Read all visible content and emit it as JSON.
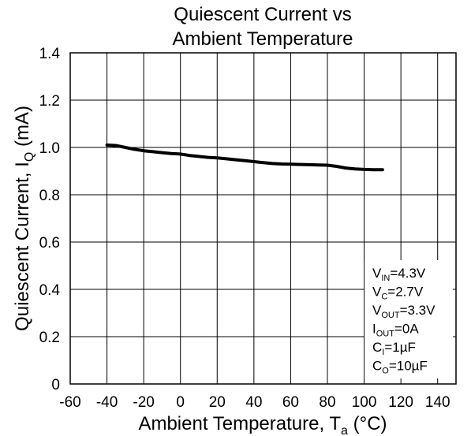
{
  "chart_data": {
    "type": "line",
    "title_lines": [
      "Quiescent Current vs",
      "Ambient Temperature"
    ],
    "xlabel": {
      "main": "Ambient Temperature, T",
      "sub": "a",
      "unit": " (°C)"
    },
    "ylabel": {
      "main": "Quiescent Current, I",
      "sub": "Q",
      "unit": " (mA)"
    },
    "xlim": [
      -60,
      150
    ],
    "ylim": [
      0,
      1.4
    ],
    "x_ticks": [
      -60,
      -40,
      -20,
      0,
      20,
      40,
      60,
      80,
      100,
      120,
      140
    ],
    "x_tick_labels": [
      "-60",
      "-40",
      "-20",
      "0",
      "20",
      "40",
      "60",
      "80",
      "100",
      "120",
      "140"
    ],
    "y_ticks": [
      0,
      0.2,
      0.4,
      0.6,
      0.8,
      1.0,
      1.2,
      1.4
    ],
    "y_tick_labels": [
      "0",
      "0.2",
      "0.4",
      "0.6",
      "0.8",
      "1.0",
      "1.2",
      "1.4"
    ],
    "grid": true,
    "legend": "none",
    "series": [
      {
        "color": "#000000",
        "x": [
          -40,
          -35,
          -30,
          -25,
          -20,
          -15,
          -10,
          -5,
          0,
          5,
          10,
          15,
          20,
          25,
          30,
          35,
          40,
          45,
          50,
          55,
          60,
          65,
          70,
          75,
          80,
          85,
          90,
          95,
          100,
          105,
          110
        ],
        "y": [
          1.01,
          1.008,
          1.0,
          0.992,
          0.986,
          0.982,
          0.978,
          0.974,
          0.972,
          0.966,
          0.962,
          0.958,
          0.956,
          0.952,
          0.948,
          0.944,
          0.94,
          0.936,
          0.932,
          0.93,
          0.929,
          0.928,
          0.927,
          0.926,
          0.925,
          0.92,
          0.913,
          0.909,
          0.907,
          0.906,
          0.906
        ]
      }
    ],
    "annotations": [
      {
        "main": "V",
        "sub": "IN",
        "rest": "=4.3V"
      },
      {
        "main": "V",
        "sub": "C",
        "rest": "=2.7V"
      },
      {
        "main": "V",
        "sub": "OUT",
        "rest": "=3.3V"
      },
      {
        "main": "I",
        "sub": "OUT",
        "rest": "=0A"
      },
      {
        "main": "C",
        "sub": "I",
        "rest": "=1µF"
      },
      {
        "main": "C",
        "sub": "O",
        "rest": "=10µF"
      }
    ]
  }
}
